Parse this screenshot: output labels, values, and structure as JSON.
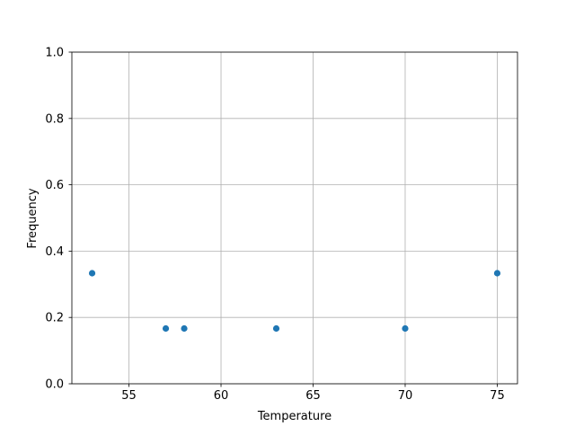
{
  "chart_data": {
    "type": "scatter",
    "title": "",
    "xlabel": "Temperature",
    "ylabel": "Frequency",
    "x": [
      53,
      57,
      58,
      63,
      70,
      75
    ],
    "y": [
      0.3333,
      0.1667,
      0.1667,
      0.1667,
      0.1667,
      0.3333
    ],
    "xlim": [
      51.9,
      76.1
    ],
    "ylim": [
      0.0,
      1.0
    ],
    "xticks": [
      55,
      60,
      65,
      70,
      75
    ],
    "xtick_labels": [
      "55",
      "60",
      "65",
      "70",
      "75"
    ],
    "yticks": [
      0.0,
      0.2,
      0.4,
      0.6,
      0.8,
      1.0
    ],
    "ytick_labels": [
      "0.0",
      "0.2",
      "0.4",
      "0.6",
      "0.8",
      "1.0"
    ],
    "grid": true,
    "marker_color": "#1f77b4",
    "grid_color": "#b0b0b0"
  }
}
